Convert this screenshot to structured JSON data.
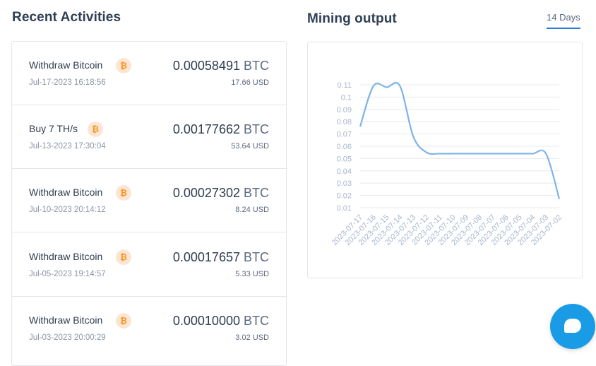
{
  "recent": {
    "title": "Recent Activities",
    "items": [
      {
        "title": "Withdraw Bitcoin",
        "date": "Jul-17-2023 16:18:56",
        "amount": "0.00058491",
        "unit": "BTC",
        "usd": "17.66 USD"
      },
      {
        "title": "Buy 7 TH/s",
        "date": "Jul-13-2023 17:30:04",
        "amount": "0.00177662",
        "unit": "BTC",
        "usd": "53.64 USD"
      },
      {
        "title": "Withdraw Bitcoin",
        "date": "Jul-10-2023 20:14:12",
        "amount": "0.00027302",
        "unit": "BTC",
        "usd": "8.24 USD"
      },
      {
        "title": "Withdraw Bitcoin",
        "date": "Jul-05-2023 19:14:57",
        "amount": "0.00017657",
        "unit": "BTC",
        "usd": "5.33 USD"
      },
      {
        "title": "Withdraw Bitcoin",
        "date": "Jul-03-2023 20:00:29",
        "amount": "0.00010000",
        "unit": "BTC",
        "usd": "3.02 USD"
      }
    ]
  },
  "mining": {
    "title": "Mining output",
    "tab_label": "14 Days"
  },
  "icons": {
    "btc_symbol": "₿",
    "chat": "chat-icon"
  },
  "colors": {
    "accent": "#2a7fd4",
    "line": "#7fb3e8",
    "btc_badge_bg": "#fde5d3",
    "btc_badge_fg": "#f7931a",
    "chat_bubble": "#1a9be6"
  },
  "chart_data": {
    "type": "line",
    "x": [
      "2023-07-17",
      "2023-07-16",
      "2023-07-15",
      "2023-07-14",
      "2023-07-13",
      "2023-07-12",
      "2023-07-11",
      "2023-07-10",
      "2023-07-09",
      "2023-07-08",
      "2023-07-07",
      "2023-07-06",
      "2023-07-05",
      "2023-07-04",
      "2023-07-03",
      "2023-07-02"
    ],
    "series": [
      {
        "values": [
          0.076,
          0.109,
          0.108,
          0.109,
          0.068,
          0.055,
          0.054,
          0.054,
          0.054,
          0.054,
          0.054,
          0.054,
          0.054,
          0.054,
          0.054,
          0.017
        ]
      }
    ],
    "yticks": [
      "0.11",
      "0.1",
      "0.09",
      "0.08",
      "0.07",
      "0.06",
      "0.05",
      "0.04",
      "0.03",
      "0.02",
      "0.01"
    ],
    "ylim": [
      0.01,
      0.11
    ],
    "grid": true
  }
}
